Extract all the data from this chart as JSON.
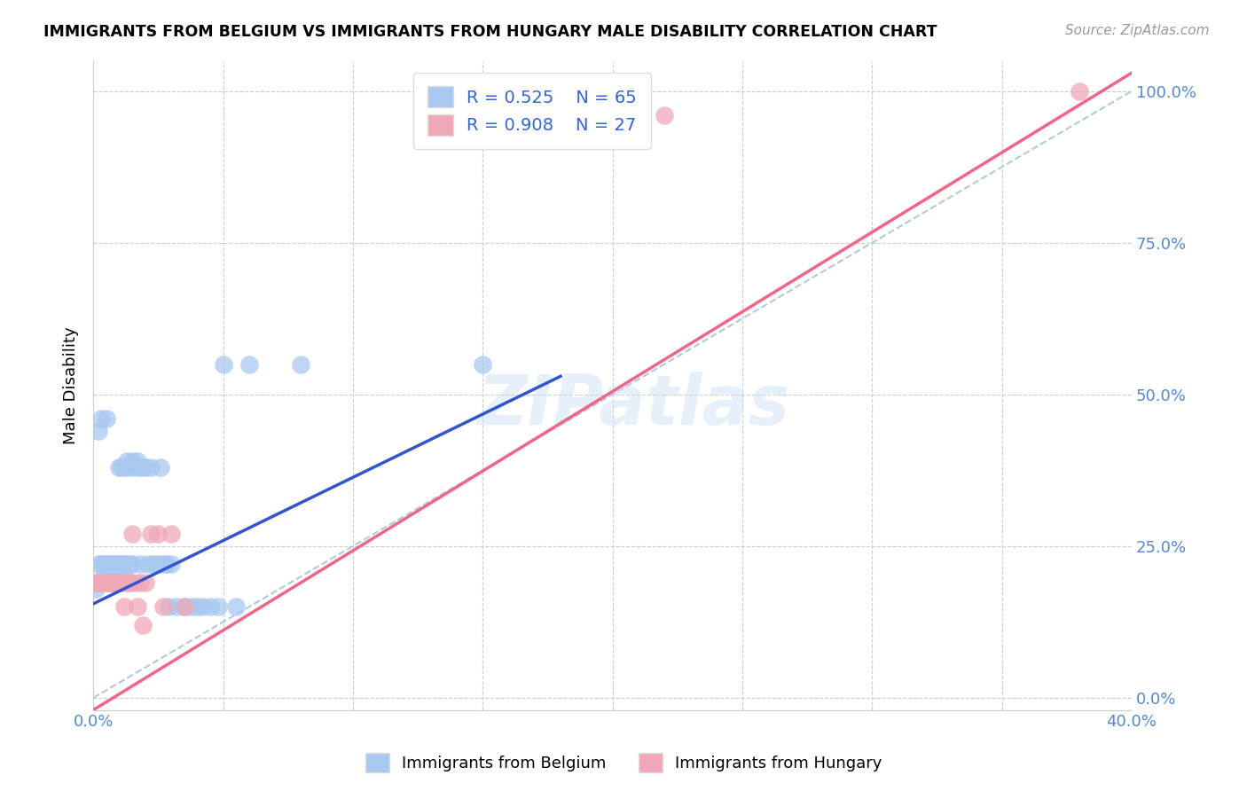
{
  "title": "IMMIGRANTS FROM BELGIUM VS IMMIGRANTS FROM HUNGARY MALE DISABILITY CORRELATION CHART",
  "source": "Source: ZipAtlas.com",
  "ylabel": "Male Disability",
  "xlim": [
    0.0,
    0.4
  ],
  "ylim": [
    -0.02,
    1.05
  ],
  "ytick_labels": [
    "0.0%",
    "25.0%",
    "50.0%",
    "75.0%",
    "100.0%"
  ],
  "ytick_vals": [
    0.0,
    0.25,
    0.5,
    0.75,
    1.0
  ],
  "xtick_vals": [
    0.0,
    0.05,
    0.1,
    0.15,
    0.2,
    0.25,
    0.3,
    0.35,
    0.4
  ],
  "xtick_labels": [
    "0.0%",
    "",
    "",
    "",
    "",
    "",
    "",
    "",
    "40.0%"
  ],
  "belgium_R": 0.525,
  "belgium_N": 65,
  "hungary_R": 0.908,
  "hungary_N": 27,
  "belgium_color": "#a8c8f0",
  "hungary_color": "#f0a8b8",
  "belgium_line_color": "#3355cc",
  "hungary_line_color": "#ee6688",
  "diagonal_color": "#b0c8e0",
  "watermark_text": "ZIPatlas",
  "belgium_x": [
    0.001,
    0.002,
    0.002,
    0.003,
    0.003,
    0.004,
    0.004,
    0.005,
    0.005,
    0.005,
    0.006,
    0.006,
    0.006,
    0.006,
    0.007,
    0.007,
    0.007,
    0.008,
    0.008,
    0.008,
    0.009,
    0.009,
    0.009,
    0.01,
    0.01,
    0.01,
    0.01,
    0.011,
    0.011,
    0.012,
    0.012,
    0.012,
    0.013,
    0.013,
    0.014,
    0.014,
    0.015,
    0.015,
    0.016,
    0.017,
    0.018,
    0.018,
    0.019,
    0.02,
    0.021,
    0.022,
    0.023,
    0.025,
    0.026,
    0.027,
    0.028,
    0.029,
    0.03,
    0.032,
    0.035,
    0.038,
    0.04,
    0.042,
    0.045,
    0.048,
    0.05,
    0.055,
    0.06,
    0.08,
    0.15
  ],
  "belgium_y": [
    0.18,
    0.44,
    0.22,
    0.46,
    0.22,
    0.22,
    0.2,
    0.46,
    0.22,
    0.22,
    0.22,
    0.21,
    0.2,
    0.19,
    0.22,
    0.2,
    0.19,
    0.22,
    0.2,
    0.19,
    0.22,
    0.2,
    0.19,
    0.38,
    0.22,
    0.21,
    0.19,
    0.38,
    0.22,
    0.38,
    0.22,
    0.2,
    0.39,
    0.22,
    0.38,
    0.22,
    0.39,
    0.22,
    0.38,
    0.39,
    0.38,
    0.22,
    0.38,
    0.38,
    0.22,
    0.38,
    0.22,
    0.22,
    0.38,
    0.22,
    0.22,
    0.15,
    0.22,
    0.15,
    0.15,
    0.15,
    0.15,
    0.15,
    0.15,
    0.15,
    0.55,
    0.15,
    0.55,
    0.55,
    0.55
  ],
  "hungary_x": [
    0.001,
    0.002,
    0.003,
    0.004,
    0.005,
    0.006,
    0.007,
    0.008,
    0.009,
    0.01,
    0.011,
    0.012,
    0.013,
    0.014,
    0.015,
    0.016,
    0.017,
    0.018,
    0.019,
    0.02,
    0.022,
    0.025,
    0.027,
    0.03,
    0.035,
    0.22,
    0.38
  ],
  "hungary_y": [
    0.19,
    0.19,
    0.19,
    0.19,
    0.19,
    0.19,
    0.19,
    0.19,
    0.19,
    0.19,
    0.19,
    0.15,
    0.19,
    0.19,
    0.27,
    0.19,
    0.15,
    0.19,
    0.12,
    0.19,
    0.27,
    0.27,
    0.15,
    0.27,
    0.15,
    0.96,
    1.0
  ],
  "belgium_line_x": [
    0.0,
    0.18
  ],
  "belgium_line_y": [
    0.155,
    0.53
  ],
  "hungary_line_x": [
    0.0,
    0.4
  ],
  "hungary_line_y": [
    -0.02,
    1.03
  ]
}
